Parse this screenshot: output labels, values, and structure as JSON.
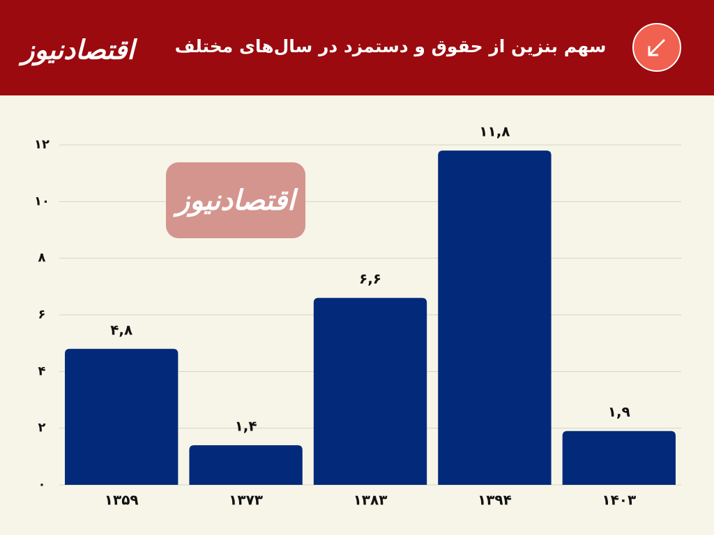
{
  "logo": "اقتصادنیوز",
  "watermark": "اقتصادنیوز",
  "chart_data": {
    "type": "bar",
    "title": "سهم بنزین از حقوق و دستمزد در سال‌های مختلف",
    "categories": [
      "۱۳۵۹",
      "۱۳۷۳",
      "۱۳۸۳",
      "۱۳۹۴",
      "۱۴۰۳"
    ],
    "values": [
      4.8,
      1.4,
      6.6,
      11.8,
      1.9
    ],
    "value_labels": [
      "۴,۸",
      "۱,۴",
      "۶,۶",
      "۱۱,۸",
      "۱,۹"
    ],
    "color": "#032a7a",
    "ylim": [
      0,
      12
    ],
    "yticks": [
      {
        "value": 0,
        "label": "۰"
      },
      {
        "value": 2,
        "label": "۲"
      },
      {
        "value": 4,
        "label": "۴"
      },
      {
        "value": 6,
        "label": "۶"
      },
      {
        "value": 8,
        "label": "۸"
      },
      {
        "value": 10,
        "label": "۱۰"
      },
      {
        "value": 12,
        "label": "۱۲"
      }
    ],
    "grid": true
  }
}
